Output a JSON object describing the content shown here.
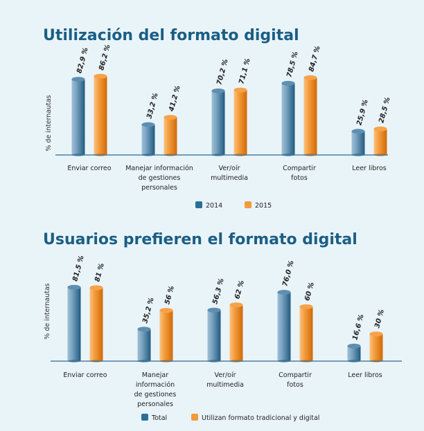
{
  "chart_data": [
    {
      "type": "bar",
      "title": "Utilización del formato digital",
      "ylabel": "% de internautas",
      "xlabel": "",
      "categories": [
        [
          "Enviar correo"
        ],
        [
          "Manejar información",
          "de gestiones",
          "personales"
        ],
        [
          "Ver/oír",
          "multimedia"
        ],
        [
          "Compartir",
          "fotos"
        ],
        [
          "Leer libros"
        ]
      ],
      "series": [
        {
          "name": "2014",
          "color": "#2a6f96",
          "values": [
            82.9,
            33.2,
            70.2,
            78.5,
            25.9
          ],
          "labels": [
            "82,9 %",
            "33,2 %",
            "70,2 %",
            "78,5 %",
            "25,9 %"
          ]
        },
        {
          "name": "2015",
          "color": "#f08a1c",
          "values": [
            86.2,
            41.2,
            71.1,
            84.7,
            28.5
          ],
          "labels": [
            "86,2 %",
            "41,2 %",
            "71,1 %",
            "84,7 %",
            "28,5 %"
          ]
        }
      ],
      "ylim": [
        0,
        100
      ],
      "grid": false,
      "legend": "bottom"
    },
    {
      "type": "bar",
      "title": "Usuarios prefieren el formato digital",
      "ylabel": "% de internautas",
      "xlabel": "",
      "categories": [
        [
          "Enviar correo"
        ],
        [
          "Manejar",
          "información",
          "de gestiones",
          "personales"
        ],
        [
          "Ver/oír",
          "multimedia"
        ],
        [
          "Compartir",
          "fotos"
        ],
        [
          "Leer libros"
        ]
      ],
      "series": [
        {
          "name": "Total",
          "color": "#2a6f96",
          "values": [
            81.5,
            35.2,
            56.3,
            76.0,
            16.6
          ],
          "labels": [
            "81,5 %",
            "35,2 %",
            "56,3 %",
            "76,0 %",
            "16,6 %"
          ]
        },
        {
          "name": "Utilizan formato tradicional y digital",
          "color": "#f08a1c",
          "values": [
            81,
            56,
            62,
            60,
            30
          ],
          "labels": [
            "81 %",
            "56 %",
            "62 %",
            "60 %",
            "30 %"
          ]
        }
      ],
      "ylim": [
        0,
        100
      ],
      "grid": false,
      "legend": "bottom"
    }
  ]
}
